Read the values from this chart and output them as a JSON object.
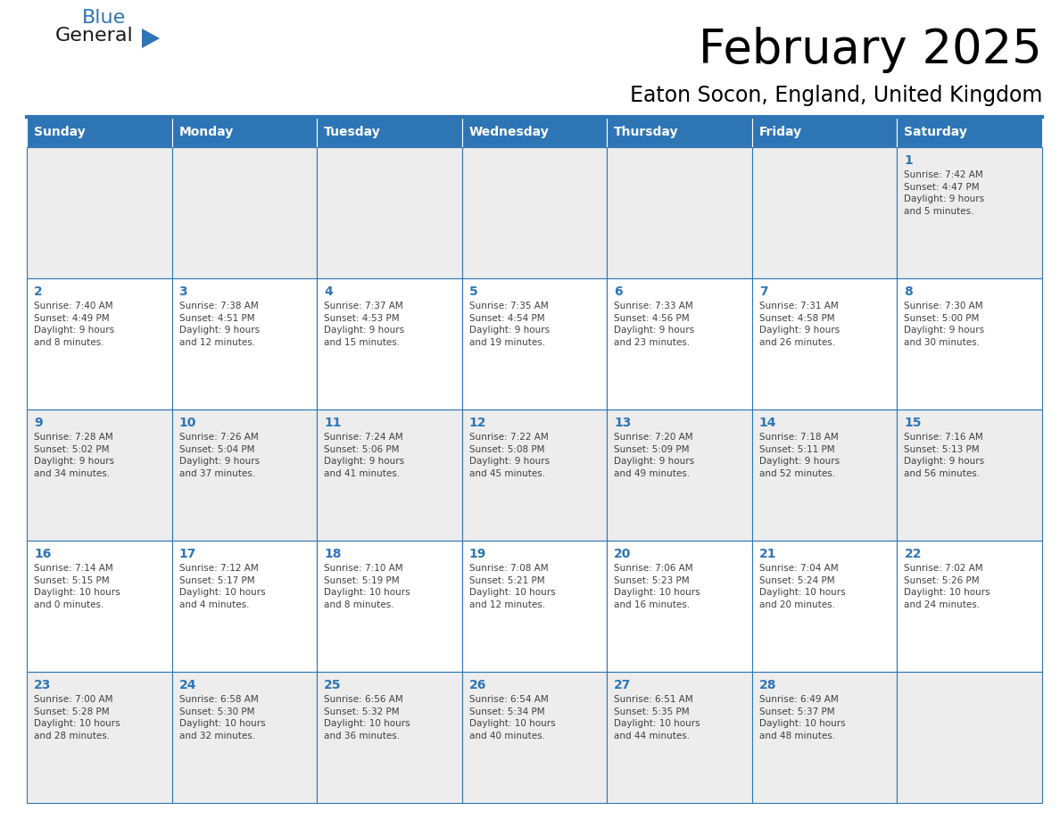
{
  "title": "February 2025",
  "subtitle": "Eaton Socon, England, United Kingdom",
  "days_of_week": [
    "Sunday",
    "Monday",
    "Tuesday",
    "Wednesday",
    "Thursday",
    "Friday",
    "Saturday"
  ],
  "header_bg": "#2E75B6",
  "header_text": "#FFFFFF",
  "cell_bg_odd": "#EDEDED",
  "cell_bg_even": "#FFFFFF",
  "cell_border": "#2E75B6",
  "day_num_color": "#2E75B6",
  "cell_text_color": "#404040",
  "weeks": [
    [
      {
        "day": null,
        "info": null
      },
      {
        "day": null,
        "info": null
      },
      {
        "day": null,
        "info": null
      },
      {
        "day": null,
        "info": null
      },
      {
        "day": null,
        "info": null
      },
      {
        "day": null,
        "info": null
      },
      {
        "day": 1,
        "info": "Sunrise: 7:42 AM\nSunset: 4:47 PM\nDaylight: 9 hours\nand 5 minutes."
      }
    ],
    [
      {
        "day": 2,
        "info": "Sunrise: 7:40 AM\nSunset: 4:49 PM\nDaylight: 9 hours\nand 8 minutes."
      },
      {
        "day": 3,
        "info": "Sunrise: 7:38 AM\nSunset: 4:51 PM\nDaylight: 9 hours\nand 12 minutes."
      },
      {
        "day": 4,
        "info": "Sunrise: 7:37 AM\nSunset: 4:53 PM\nDaylight: 9 hours\nand 15 minutes."
      },
      {
        "day": 5,
        "info": "Sunrise: 7:35 AM\nSunset: 4:54 PM\nDaylight: 9 hours\nand 19 minutes."
      },
      {
        "day": 6,
        "info": "Sunrise: 7:33 AM\nSunset: 4:56 PM\nDaylight: 9 hours\nand 23 minutes."
      },
      {
        "day": 7,
        "info": "Sunrise: 7:31 AM\nSunset: 4:58 PM\nDaylight: 9 hours\nand 26 minutes."
      },
      {
        "day": 8,
        "info": "Sunrise: 7:30 AM\nSunset: 5:00 PM\nDaylight: 9 hours\nand 30 minutes."
      }
    ],
    [
      {
        "day": 9,
        "info": "Sunrise: 7:28 AM\nSunset: 5:02 PM\nDaylight: 9 hours\nand 34 minutes."
      },
      {
        "day": 10,
        "info": "Sunrise: 7:26 AM\nSunset: 5:04 PM\nDaylight: 9 hours\nand 37 minutes."
      },
      {
        "day": 11,
        "info": "Sunrise: 7:24 AM\nSunset: 5:06 PM\nDaylight: 9 hours\nand 41 minutes."
      },
      {
        "day": 12,
        "info": "Sunrise: 7:22 AM\nSunset: 5:08 PM\nDaylight: 9 hours\nand 45 minutes."
      },
      {
        "day": 13,
        "info": "Sunrise: 7:20 AM\nSunset: 5:09 PM\nDaylight: 9 hours\nand 49 minutes."
      },
      {
        "day": 14,
        "info": "Sunrise: 7:18 AM\nSunset: 5:11 PM\nDaylight: 9 hours\nand 52 minutes."
      },
      {
        "day": 15,
        "info": "Sunrise: 7:16 AM\nSunset: 5:13 PM\nDaylight: 9 hours\nand 56 minutes."
      }
    ],
    [
      {
        "day": 16,
        "info": "Sunrise: 7:14 AM\nSunset: 5:15 PM\nDaylight: 10 hours\nand 0 minutes."
      },
      {
        "day": 17,
        "info": "Sunrise: 7:12 AM\nSunset: 5:17 PM\nDaylight: 10 hours\nand 4 minutes."
      },
      {
        "day": 18,
        "info": "Sunrise: 7:10 AM\nSunset: 5:19 PM\nDaylight: 10 hours\nand 8 minutes."
      },
      {
        "day": 19,
        "info": "Sunrise: 7:08 AM\nSunset: 5:21 PM\nDaylight: 10 hours\nand 12 minutes."
      },
      {
        "day": 20,
        "info": "Sunrise: 7:06 AM\nSunset: 5:23 PM\nDaylight: 10 hours\nand 16 minutes."
      },
      {
        "day": 21,
        "info": "Sunrise: 7:04 AM\nSunset: 5:24 PM\nDaylight: 10 hours\nand 20 minutes."
      },
      {
        "day": 22,
        "info": "Sunrise: 7:02 AM\nSunset: 5:26 PM\nDaylight: 10 hours\nand 24 minutes."
      }
    ],
    [
      {
        "day": 23,
        "info": "Sunrise: 7:00 AM\nSunset: 5:28 PM\nDaylight: 10 hours\nand 28 minutes."
      },
      {
        "day": 24,
        "info": "Sunrise: 6:58 AM\nSunset: 5:30 PM\nDaylight: 10 hours\nand 32 minutes."
      },
      {
        "day": 25,
        "info": "Sunrise: 6:56 AM\nSunset: 5:32 PM\nDaylight: 10 hours\nand 36 minutes."
      },
      {
        "day": 26,
        "info": "Sunrise: 6:54 AM\nSunset: 5:34 PM\nDaylight: 10 hours\nand 40 minutes."
      },
      {
        "day": 27,
        "info": "Sunrise: 6:51 AM\nSunset: 5:35 PM\nDaylight: 10 hours\nand 44 minutes."
      },
      {
        "day": 28,
        "info": "Sunrise: 6:49 AM\nSunset: 5:37 PM\nDaylight: 10 hours\nand 48 minutes."
      },
      {
        "day": null,
        "info": null
      }
    ]
  ],
  "fig_width": 11.88,
  "fig_height": 9.18,
  "dpi": 100
}
